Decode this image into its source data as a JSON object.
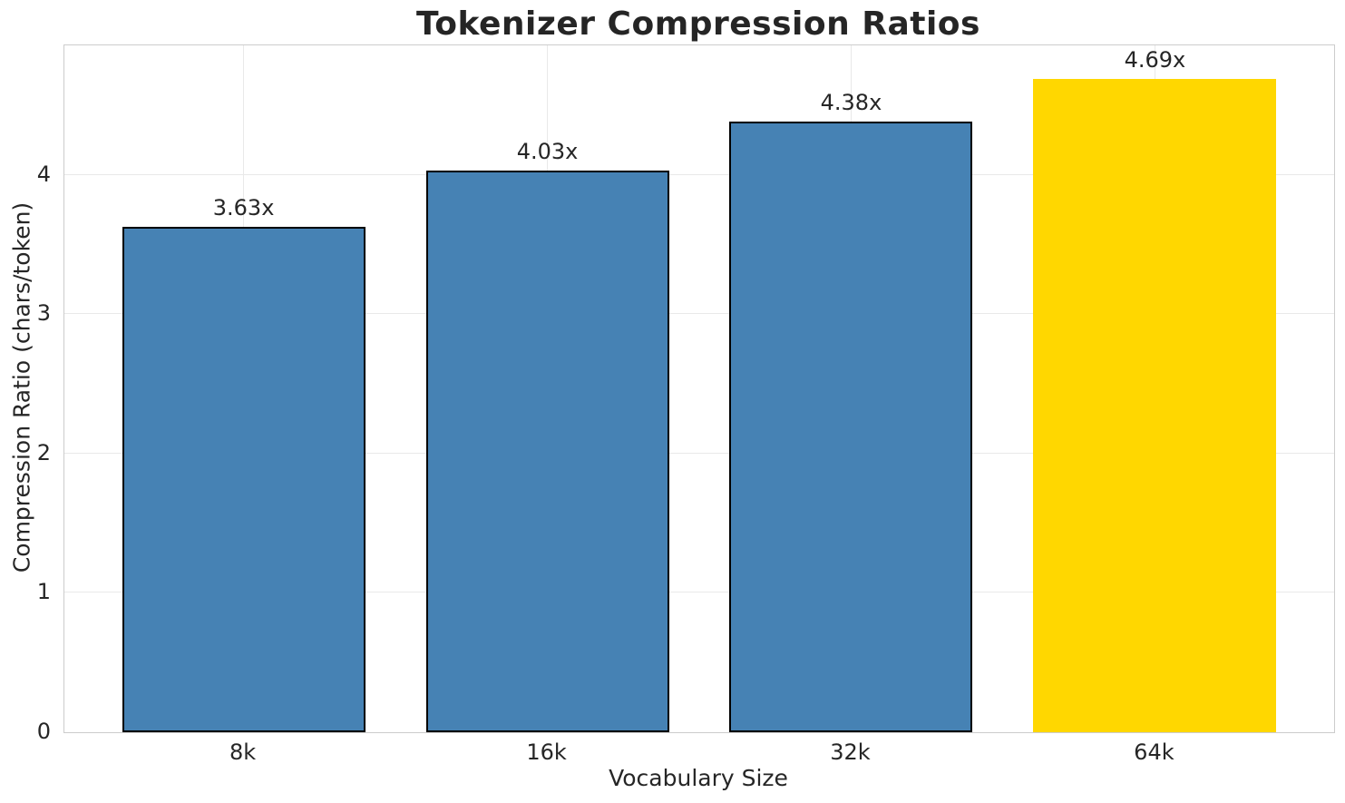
{
  "chart_data": {
    "type": "bar",
    "title": "Tokenizer Compression Ratios",
    "xlabel": "Vocabulary Size",
    "ylabel": "Compression Ratio (chars/token)",
    "categories": [
      "8k",
      "16k",
      "32k",
      "64k"
    ],
    "values": [
      3.63,
      4.03,
      4.38,
      4.69
    ],
    "bar_labels": [
      "3.63x",
      "4.03x",
      "4.38x",
      "4.69x"
    ],
    "bar_colors": [
      "#4682b4",
      "#4682b4",
      "#4682b4",
      "#ffd700"
    ],
    "bar_edge_colors": [
      "#000000",
      "#000000",
      "#000000",
      "none"
    ],
    "yticks": [
      0,
      1,
      2,
      3,
      4
    ],
    "ylim": [
      0,
      4.93
    ],
    "grid": true,
    "legend_position": "none",
    "highlighted_category": "64k",
    "colors": {
      "bar_default": "#4682b4",
      "bar_highlight": "#ffd700",
      "bar_edge": "#000000",
      "grid": "#e9e9e9",
      "spine": "#cccccc",
      "text": "#262626"
    }
  }
}
